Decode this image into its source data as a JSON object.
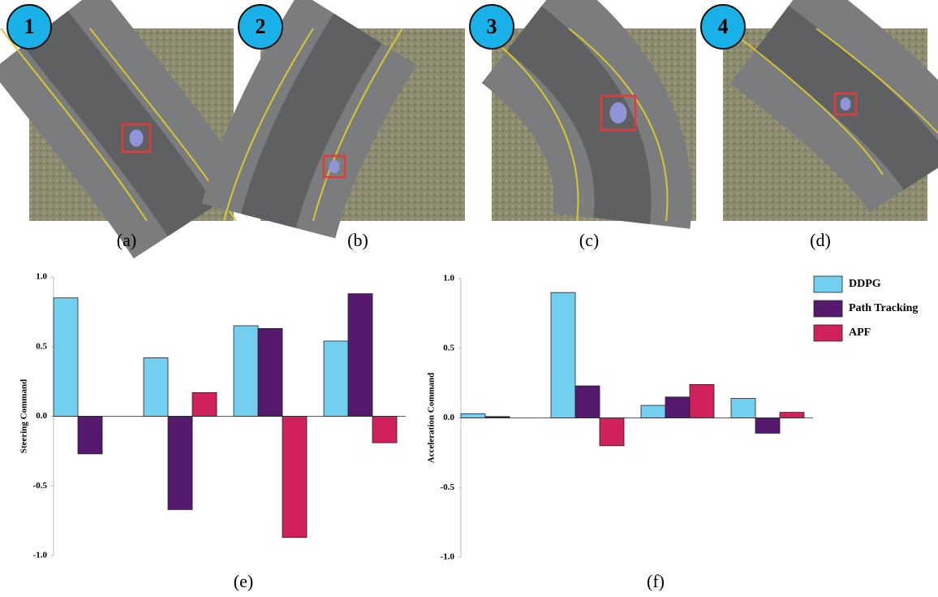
{
  "panels": [
    {
      "badge": "1",
      "caption": "(a)"
    },
    {
      "badge": "2",
      "caption": "(b)"
    },
    {
      "badge": "3",
      "caption": "(c)"
    },
    {
      "badge": "4",
      "caption": "(d)"
    }
  ],
  "chart_data": [
    {
      "type": "bar",
      "caption": "(e)",
      "ylabel": "Steering Command",
      "ylim": [
        -1,
        1
      ],
      "yticks": [
        {
          "value": -1,
          "label": "-1.0"
        },
        {
          "value": -0.5,
          "label": "-0.5"
        },
        {
          "value": 0,
          "label": "0.0"
        },
        {
          "value": 0.5,
          "label": "0.5"
        },
        {
          "value": 1,
          "label": "1.0"
        }
      ],
      "series": [
        {
          "color": "#72cff0",
          "values": [
            0.85,
            0.42,
            0.65,
            0.54
          ]
        },
        {
          "color": "#551a6e",
          "values": [
            -0.27,
            -0.67,
            0.63,
            0.88
          ]
        },
        {
          "color": "#d1215d",
          "values": [
            0,
            0.17,
            -0.87,
            -0.19
          ]
        }
      ]
    },
    {
      "type": "bar",
      "caption": "(f)",
      "ylabel": "Acceleration Command",
      "ylim": [
        -1,
        1
      ],
      "yticks": [
        {
          "value": -1,
          "label": "-1.0"
        },
        {
          "value": -0.5,
          "label": "-0.5"
        },
        {
          "value": 0,
          "label": "0.0"
        },
        {
          "value": 0.5,
          "label": "0.5"
        },
        {
          "value": 1,
          "label": "1.0"
        }
      ],
      "legend": "top-right",
      "series": [
        {
          "name": "DDPG",
          "color": "#72cff0",
          "values": [
            0.03,
            0.9,
            0.09,
            0.14
          ]
        },
        {
          "name": "Path Tracking",
          "color": "#551a6e",
          "values": [
            0.01,
            0.23,
            0.15,
            -0.11
          ]
        },
        {
          "name": "APF",
          "color": "#d1215d",
          "values": [
            0,
            -0.2,
            0.24,
            0.04
          ]
        }
      ]
    }
  ]
}
